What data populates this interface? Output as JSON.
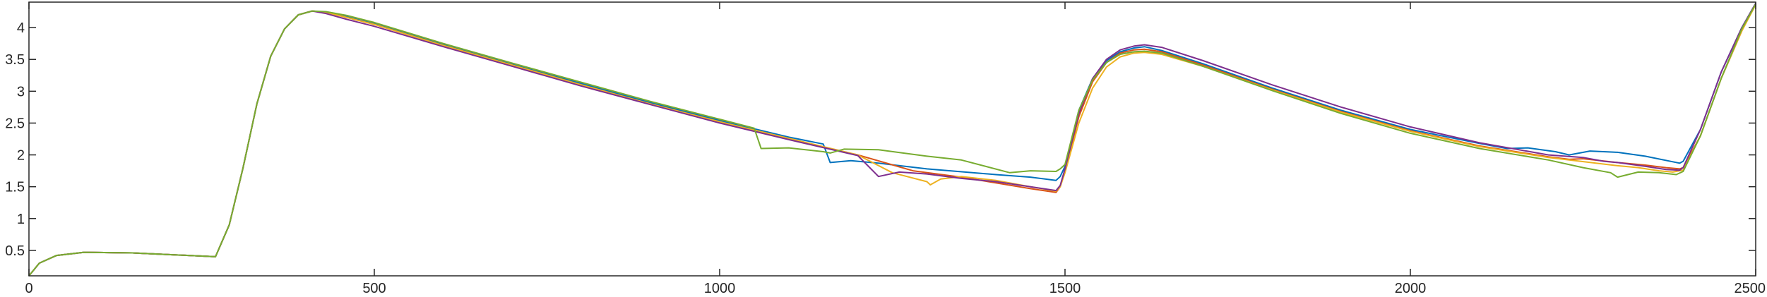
{
  "chart_data": {
    "type": "line",
    "title": "",
    "xlabel": "",
    "ylabel": "",
    "xlim": [
      0,
      2500
    ],
    "ylim": [
      0.1,
      4.4
    ],
    "x_ticks": [
      0,
      500,
      1000,
      1500,
      2000,
      2500
    ],
    "y_ticks": [
      0.5,
      1,
      1.5,
      2,
      2.5,
      3,
      3.5,
      4
    ],
    "grid": false,
    "legend": "none",
    "series": [
      {
        "color": "#0072BD",
        "points": [
          [
            0,
            0.1
          ],
          [
            15,
            0.3
          ],
          [
            40,
            0.42
          ],
          [
            80,
            0.47
          ],
          [
            150,
            0.46
          ],
          [
            270,
            0.4
          ],
          [
            290,
            0.9
          ],
          [
            310,
            1.8
          ],
          [
            330,
            2.8
          ],
          [
            350,
            3.55
          ],
          [
            370,
            3.98
          ],
          [
            390,
            4.2
          ],
          [
            410,
            4.26
          ],
          [
            430,
            4.24
          ],
          [
            460,
            4.17
          ],
          [
            500,
            4.06
          ],
          [
            600,
            3.73
          ],
          [
            700,
            3.42
          ],
          [
            800,
            3.12
          ],
          [
            900,
            2.82
          ],
          [
            1000,
            2.54
          ],
          [
            1100,
            2.28
          ],
          [
            1150,
            2.17
          ],
          [
            1160,
            1.88
          ],
          [
            1190,
            1.91
          ],
          [
            1230,
            1.87
          ],
          [
            1300,
            1.78
          ],
          [
            1400,
            1.69
          ],
          [
            1450,
            1.65
          ],
          [
            1487,
            1.6
          ],
          [
            1493,
            1.66
          ],
          [
            1500,
            1.82
          ],
          [
            1520,
            2.7
          ],
          [
            1540,
            3.2
          ],
          [
            1560,
            3.48
          ],
          [
            1580,
            3.62
          ],
          [
            1600,
            3.68
          ],
          [
            1615,
            3.7
          ],
          [
            1640,
            3.64
          ],
          [
            1700,
            3.43
          ],
          [
            1800,
            3.05
          ],
          [
            1900,
            2.7
          ],
          [
            2000,
            2.4
          ],
          [
            2100,
            2.18
          ],
          [
            2140,
            2.1
          ],
          [
            2170,
            2.11
          ],
          [
            2210,
            2.05
          ],
          [
            2230,
            2.0
          ],
          [
            2260,
            2.06
          ],
          [
            2300,
            2.04
          ],
          [
            2340,
            1.98
          ],
          [
            2390,
            1.87
          ],
          [
            2395,
            1.9
          ],
          [
            2420,
            2.4
          ],
          [
            2450,
            3.3
          ],
          [
            2480,
            4.0
          ],
          [
            2500,
            4.38
          ]
        ]
      },
      {
        "color": "#D95319",
        "points": [
          [
            0,
            0.1
          ],
          [
            15,
            0.3
          ],
          [
            40,
            0.42
          ],
          [
            80,
            0.47
          ],
          [
            150,
            0.46
          ],
          [
            270,
            0.4
          ],
          [
            290,
            0.9
          ],
          [
            310,
            1.8
          ],
          [
            330,
            2.8
          ],
          [
            350,
            3.55
          ],
          [
            370,
            3.98
          ],
          [
            390,
            4.2
          ],
          [
            410,
            4.26
          ],
          [
            430,
            4.24
          ],
          [
            460,
            4.16
          ],
          [
            500,
            4.05
          ],
          [
            600,
            3.72
          ],
          [
            700,
            3.41
          ],
          [
            800,
            3.1
          ],
          [
            900,
            2.8
          ],
          [
            1000,
            2.52
          ],
          [
            1100,
            2.25
          ],
          [
            1200,
            2.0
          ],
          [
            1280,
            1.75
          ],
          [
            1350,
            1.65
          ],
          [
            1400,
            1.56
          ],
          [
            1450,
            1.47
          ],
          [
            1487,
            1.41
          ],
          [
            1493,
            1.5
          ],
          [
            1500,
            1.76
          ],
          [
            1520,
            2.6
          ],
          [
            1540,
            3.15
          ],
          [
            1560,
            3.45
          ],
          [
            1580,
            3.6
          ],
          [
            1600,
            3.65
          ],
          [
            1615,
            3.66
          ],
          [
            1640,
            3.62
          ],
          [
            1700,
            3.41
          ],
          [
            1800,
            3.03
          ],
          [
            1900,
            2.68
          ],
          [
            2000,
            2.38
          ],
          [
            2100,
            2.14
          ],
          [
            2200,
            1.97
          ],
          [
            2230,
            1.93
          ],
          [
            2250,
            1.94
          ],
          [
            2300,
            1.88
          ],
          [
            2340,
            1.84
          ],
          [
            2370,
            1.8
          ],
          [
            2390,
            1.78
          ],
          [
            2395,
            1.8
          ],
          [
            2420,
            2.3
          ],
          [
            2450,
            3.2
          ],
          [
            2480,
            3.95
          ],
          [
            2500,
            4.37
          ]
        ]
      },
      {
        "color": "#EDB120",
        "points": [
          [
            0,
            0.1
          ],
          [
            15,
            0.3
          ],
          [
            40,
            0.42
          ],
          [
            80,
            0.47
          ],
          [
            150,
            0.46
          ],
          [
            270,
            0.4
          ],
          [
            290,
            0.9
          ],
          [
            310,
            1.8
          ],
          [
            330,
            2.8
          ],
          [
            350,
            3.55
          ],
          [
            370,
            3.98
          ],
          [
            390,
            4.2
          ],
          [
            410,
            4.26
          ],
          [
            430,
            4.24
          ],
          [
            460,
            4.16
          ],
          [
            500,
            4.05
          ],
          [
            600,
            3.72
          ],
          [
            700,
            3.41
          ],
          [
            800,
            3.1
          ],
          [
            900,
            2.8
          ],
          [
            1000,
            2.52
          ],
          [
            1100,
            2.26
          ],
          [
            1200,
            2.0
          ],
          [
            1250,
            1.72
          ],
          [
            1300,
            1.58
          ],
          [
            1305,
            1.53
          ],
          [
            1320,
            1.62
          ],
          [
            1350,
            1.66
          ],
          [
            1400,
            1.6
          ],
          [
            1450,
            1.5
          ],
          [
            1487,
            1.43
          ],
          [
            1493,
            1.5
          ],
          [
            1500,
            1.72
          ],
          [
            1520,
            2.5
          ],
          [
            1540,
            3.05
          ],
          [
            1560,
            3.38
          ],
          [
            1580,
            3.54
          ],
          [
            1600,
            3.6
          ],
          [
            1615,
            3.61
          ],
          [
            1640,
            3.58
          ],
          [
            1700,
            3.39
          ],
          [
            1800,
            3.02
          ],
          [
            1900,
            2.67
          ],
          [
            2000,
            2.37
          ],
          [
            2100,
            2.13
          ],
          [
            2200,
            1.96
          ],
          [
            2300,
            1.83
          ],
          [
            2330,
            1.8
          ],
          [
            2360,
            1.75
          ],
          [
            2380,
            1.73
          ],
          [
            2395,
            1.76
          ],
          [
            2420,
            2.3
          ],
          [
            2450,
            3.2
          ],
          [
            2480,
            3.95
          ],
          [
            2500,
            4.36
          ]
        ]
      },
      {
        "color": "#7E2F8E",
        "points": [
          [
            0,
            0.1
          ],
          [
            15,
            0.3
          ],
          [
            40,
            0.42
          ],
          [
            80,
            0.47
          ],
          [
            150,
            0.46
          ],
          [
            270,
            0.4
          ],
          [
            290,
            0.9
          ],
          [
            310,
            1.8
          ],
          [
            330,
            2.8
          ],
          [
            350,
            3.55
          ],
          [
            370,
            3.98
          ],
          [
            390,
            4.2
          ],
          [
            410,
            4.26
          ],
          [
            430,
            4.22
          ],
          [
            460,
            4.13
          ],
          [
            500,
            4.02
          ],
          [
            600,
            3.7
          ],
          [
            700,
            3.39
          ],
          [
            800,
            3.08
          ],
          [
            900,
            2.79
          ],
          [
            1000,
            2.5
          ],
          [
            1100,
            2.24
          ],
          [
            1200,
            1.99
          ],
          [
            1230,
            1.66
          ],
          [
            1260,
            1.73
          ],
          [
            1300,
            1.7
          ],
          [
            1350,
            1.63
          ],
          [
            1400,
            1.58
          ],
          [
            1450,
            1.5
          ],
          [
            1487,
            1.44
          ],
          [
            1493,
            1.52
          ],
          [
            1500,
            1.78
          ],
          [
            1520,
            2.65
          ],
          [
            1540,
            3.2
          ],
          [
            1560,
            3.5
          ],
          [
            1580,
            3.65
          ],
          [
            1600,
            3.71
          ],
          [
            1615,
            3.73
          ],
          [
            1640,
            3.69
          ],
          [
            1700,
            3.48
          ],
          [
            1800,
            3.1
          ],
          [
            1900,
            2.75
          ],
          [
            2000,
            2.44
          ],
          [
            2100,
            2.19
          ],
          [
            2200,
            2.0
          ],
          [
            2250,
            1.96
          ],
          [
            2280,
            1.9
          ],
          [
            2300,
            1.88
          ],
          [
            2340,
            1.82
          ],
          [
            2370,
            1.77
          ],
          [
            2390,
            1.76
          ],
          [
            2395,
            1.8
          ],
          [
            2420,
            2.4
          ],
          [
            2450,
            3.3
          ],
          [
            2480,
            4.0
          ],
          [
            2500,
            4.38
          ]
        ]
      },
      {
        "color": "#77AC30",
        "points": [
          [
            0,
            0.1
          ],
          [
            15,
            0.3
          ],
          [
            40,
            0.42
          ],
          [
            80,
            0.47
          ],
          [
            150,
            0.46
          ],
          [
            270,
            0.4
          ],
          [
            290,
            0.9
          ],
          [
            310,
            1.8
          ],
          [
            330,
            2.8
          ],
          [
            350,
            3.55
          ],
          [
            370,
            3.98
          ],
          [
            390,
            4.2
          ],
          [
            410,
            4.26
          ],
          [
            430,
            4.25
          ],
          [
            460,
            4.19
          ],
          [
            500,
            4.08
          ],
          [
            600,
            3.75
          ],
          [
            700,
            3.44
          ],
          [
            800,
            3.14
          ],
          [
            900,
            2.84
          ],
          [
            1000,
            2.56
          ],
          [
            1050,
            2.42
          ],
          [
            1060,
            2.1
          ],
          [
            1100,
            2.11
          ],
          [
            1150,
            2.05
          ],
          [
            1160,
            2.03
          ],
          [
            1180,
            2.09
          ],
          [
            1230,
            2.08
          ],
          [
            1300,
            1.98
          ],
          [
            1350,
            1.92
          ],
          [
            1420,
            1.72
          ],
          [
            1450,
            1.75
          ],
          [
            1487,
            1.74
          ],
          [
            1493,
            1.78
          ],
          [
            1500,
            1.85
          ],
          [
            1520,
            2.7
          ],
          [
            1540,
            3.18
          ],
          [
            1560,
            3.45
          ],
          [
            1580,
            3.58
          ],
          [
            1600,
            3.62
          ],
          [
            1615,
            3.63
          ],
          [
            1640,
            3.6
          ],
          [
            1700,
            3.39
          ],
          [
            1800,
            3.01
          ],
          [
            1900,
            2.65
          ],
          [
            2000,
            2.34
          ],
          [
            2100,
            2.1
          ],
          [
            2200,
            1.92
          ],
          [
            2250,
            1.8
          ],
          [
            2290,
            1.72
          ],
          [
            2300,
            1.65
          ],
          [
            2330,
            1.73
          ],
          [
            2360,
            1.72
          ],
          [
            2385,
            1.69
          ],
          [
            2395,
            1.74
          ],
          [
            2420,
            2.3
          ],
          [
            2450,
            3.2
          ],
          [
            2480,
            3.98
          ],
          [
            2500,
            4.37
          ]
        ]
      }
    ]
  }
}
